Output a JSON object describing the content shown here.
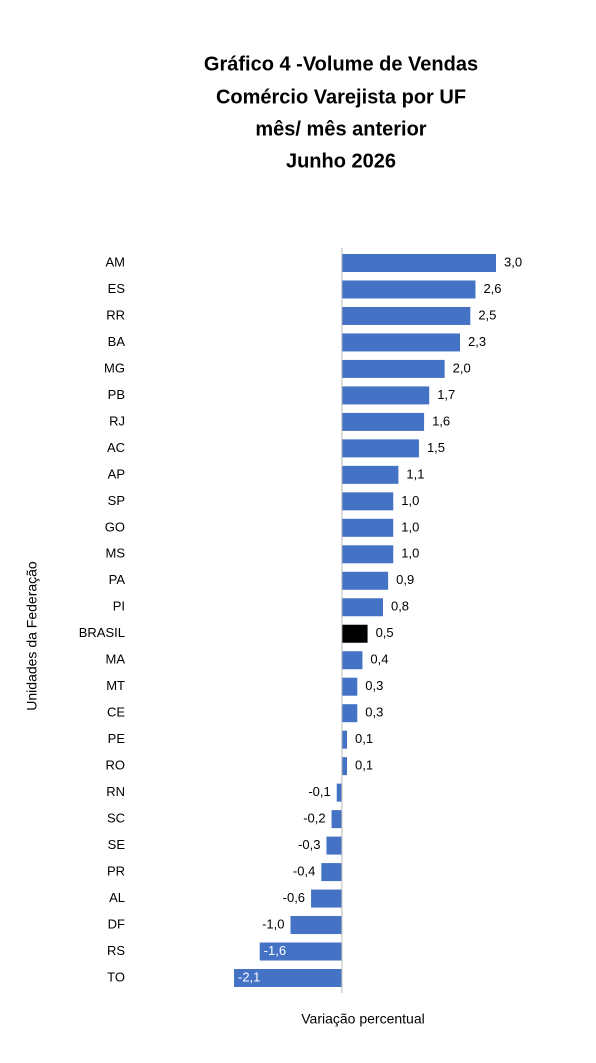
{
  "chart_data": {
    "type": "hbar",
    "title": [
      "Gráfico 4 -Volume de Vendas",
      "Comércio Varejista por UF",
      "mês/ mês anterior",
      "Junho 2026"
    ],
    "y_label": "Unidades da Federação",
    "x_label": "Variação percentual",
    "categories": [
      "AM",
      "ES",
      "RR",
      "BA",
      "MG",
      "PB",
      "RJ",
      "AC",
      "AP",
      "SP",
      "GO",
      "MS",
      "PA",
      "PI",
      "BRASIL",
      "MA",
      "MT",
      "CE",
      "PE",
      "RO",
      "RN",
      "SC",
      "SE",
      "PR",
      "AL",
      "DF",
      "RS",
      "TO"
    ],
    "values": [
      3.0,
      2.6,
      2.5,
      2.3,
      2.0,
      1.7,
      1.6,
      1.5,
      1.1,
      1.0,
      1.0,
      1.0,
      0.9,
      0.8,
      0.5,
      0.4,
      0.3,
      0.3,
      0.1,
      0.1,
      -0.1,
      -0.2,
      -0.3,
      -0.4,
      -0.6,
      -1.0,
      -1.6,
      -2.1
    ],
    "value_labels": [
      "3,0",
      "2,6",
      "2,5",
      "2,3",
      "2,0",
      "1,7",
      "1,6",
      "1,5",
      "1,1",
      "1,0",
      "1,0",
      "1,0",
      "0,9",
      "0,8",
      "0,5",
      "0,4",
      "0,3",
      "0,3",
      "0,1",
      "0,1",
      "-0,1",
      "-0,2",
      "-0,3",
      "-0,4",
      "-0,6",
      "-1,0",
      "-1,6",
      "-2,1"
    ],
    "colors": [
      "#4472c4",
      "#4472c4",
      "#4472c4",
      "#4472c4",
      "#4472c4",
      "#4472c4",
      "#4472c4",
      "#4472c4",
      "#4472c4",
      "#4472c4",
      "#4472c4",
      "#4472c4",
      "#4472c4",
      "#4472c4",
      "#000000",
      "#4472c4",
      "#4472c4",
      "#4472c4",
      "#4472c4",
      "#4472c4",
      "#4472c4",
      "#4472c4",
      "#4472c4",
      "#4472c4",
      "#4472c4",
      "#4472c4",
      "#4472c4",
      "#4472c4"
    ],
    "xlim": [
      -2.1,
      3.0
    ]
  }
}
